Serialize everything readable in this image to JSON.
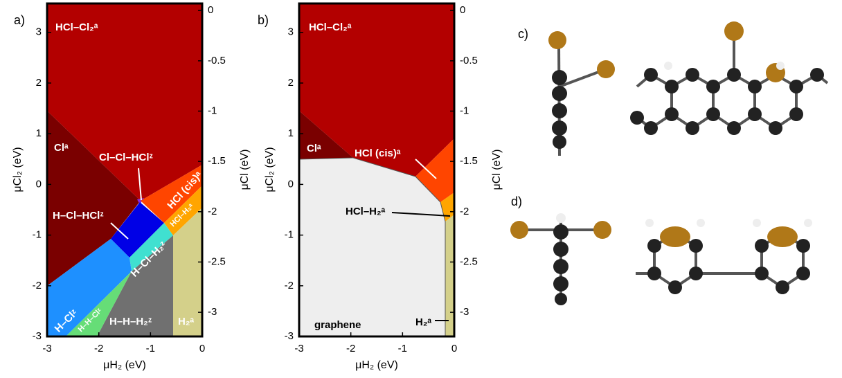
{
  "panels": [
    {
      "label": "a)",
      "x_label": "μH₂ (eV)",
      "y_label": "μCl₂ (eV)",
      "y2_label": "μCl (eV)",
      "xlim": [
        -3,
        0
      ],
      "xticks": [
        -3,
        -2,
        -1,
        0
      ],
      "ylim": [
        -3,
        3.57
      ],
      "yticks": [
        -3,
        -2,
        -1,
        0,
        1,
        2,
        3
      ],
      "y2lim": [
        -3.24,
        0.07
      ],
      "y2ticks": [
        -3,
        -2.5,
        -2,
        -1.5,
        -1,
        -0.5,
        0
      ],
      "regions": [
        "HCl–Cl₂ᵃ",
        "Clᵃ",
        "Cl–Cl–HClᶻ",
        "HCl (cis)ᵃ",
        "H–Cl–HClᶻ",
        "HCl–H₂ᵃ",
        "H–Cl–H₂ᶻ",
        "H–Clᶻ",
        "H–H–Clᶻ",
        "H–H–H₂ᶻ",
        "H₂ᵃ"
      ]
    },
    {
      "label": "b)",
      "x_label": "μH₂ (eV)",
      "y_label": "μCl₂ (eV)",
      "y2_label": "μCl (eV)",
      "xlim": [
        -3,
        0
      ],
      "xticks": [
        -3,
        -2,
        -1,
        0
      ],
      "ylim": [
        -3,
        3.57
      ],
      "yticks": [
        -3,
        -2,
        -1,
        0,
        1,
        2,
        3
      ],
      "y2lim": [
        -3.24,
        0.07
      ],
      "y2ticks": [
        -3,
        -2.5,
        -2,
        -1.5,
        -1,
        -0.5,
        0
      ],
      "regions": [
        "HCl–Cl₂ᵃ",
        "Clᵃ",
        "HCl (cis)ᵃ",
        "HCl–H₂ᵃ",
        "H₂ᵃ",
        "graphene"
      ]
    }
  ],
  "structures": [
    {
      "label": "c)"
    },
    {
      "label": "d)"
    }
  ]
}
